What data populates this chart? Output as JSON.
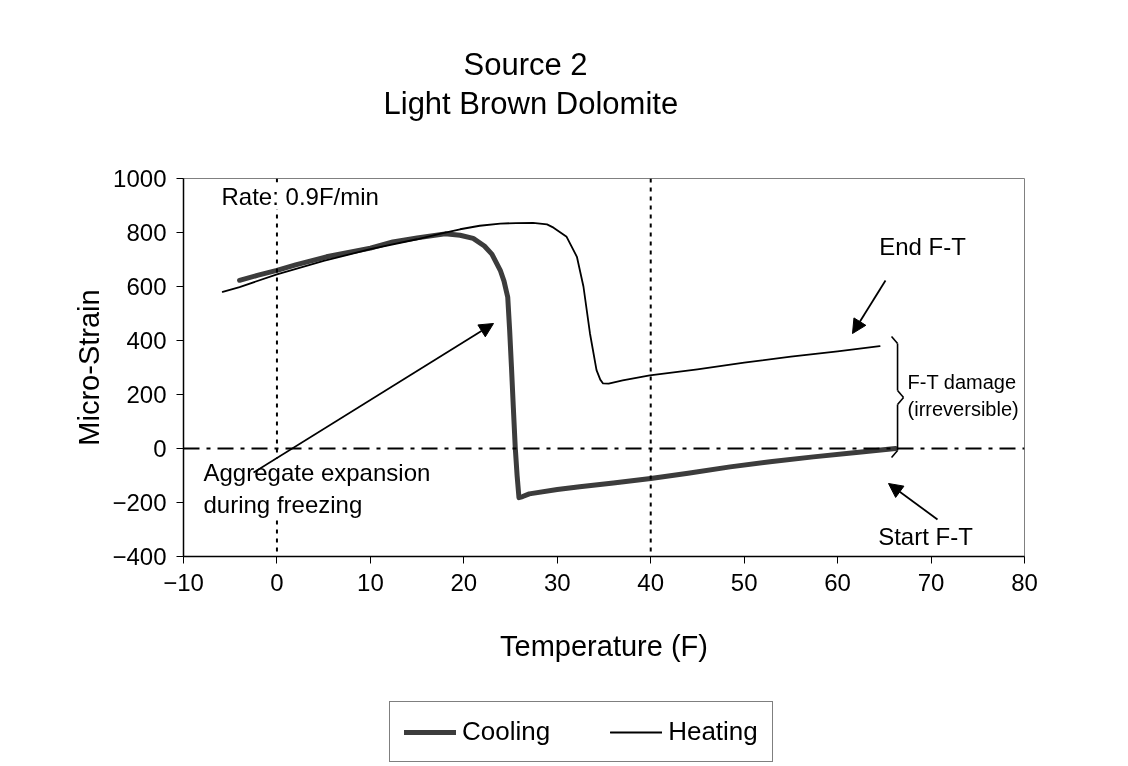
{
  "chart_data": {
    "type": "line",
    "title": "Source 2",
    "subtitle": "Light Brown Dolomite",
    "xlabel": "Temperature (F)",
    "ylabel": "Micro-Strain",
    "xlim": [
      -10,
      80
    ],
    "xticks": [
      -10,
      0,
      10,
      20,
      30,
      40,
      50,
      60,
      70,
      80
    ],
    "ylim": [
      -400,
      1000
    ],
    "yticks": [
      -400,
      -200,
      0,
      200,
      400,
      600,
      800,
      1000
    ],
    "legend": "bottom",
    "series": [
      {
        "name": "Cooling",
        "color": "#3c3c3c",
        "x": [
          66.2,
          62,
          57.4,
          53,
          48.5,
          44,
          40,
          36,
          32.4,
          30,
          27,
          26.3,
          25.9,
          25.7,
          25.5,
          25.3,
          25.1,
          24.9,
          24.7,
          24.3,
          23.9,
          23,
          22.2,
          21,
          19.6,
          18,
          15,
          12.4,
          10,
          5.3,
          2,
          0,
          -2,
          -4
        ],
        "values": [
          0,
          -15,
          -31,
          -48,
          -68,
          -92,
          -111,
          -128,
          -142,
          -152,
          -168,
          -178,
          -182,
          -100,
          5,
          150,
          300,
          440,
          560,
          620,
          660,
          720,
          750,
          778,
          790,
          795,
          780,
          765,
          742,
          710,
          680,
          660,
          642,
          623
        ]
      },
      {
        "name": "Heating",
        "color": "#000000",
        "x": [
          -5.8,
          -4,
          0,
          5,
          10,
          15,
          17.4,
          19.6,
          21.7,
          23.9,
          25.6,
          27.4,
          28.9,
          29.6,
          31,
          32.1,
          32.8,
          33.5,
          34.2,
          34.6,
          34.9,
          35.5,
          37,
          39.9,
          45,
          50,
          55,
          60,
          64.5
        ],
        "values": [
          580,
          598,
          645,
          695,
          738,
          775,
          795,
          812,
          825,
          833,
          835,
          836,
          830,
          818,
          784,
          710,
          600,
          426,
          290,
          255,
          241,
          240,
          252,
          271,
          293,
          318,
          340,
          360,
          379
        ]
      }
    ],
    "ref_lines": [
      {
        "axis": "x",
        "value": 0,
        "color": "#000000",
        "line_style": "dotted"
      },
      {
        "axis": "x",
        "value": 40,
        "color": "#000000",
        "line_style": "dotted"
      },
      {
        "axis": "y",
        "value": 0,
        "color": "#000000",
        "line_style": "dashdot"
      }
    ],
    "annotations": [
      "Rate: 0.9F/min",
      "Aggregate expansion\nduring freezing",
      "End F-T",
      "Start F-T",
      {
        "text": "F-T damage\n(irreversible)",
        "x": 66.2,
        "y": 0
      }
    ]
  }
}
